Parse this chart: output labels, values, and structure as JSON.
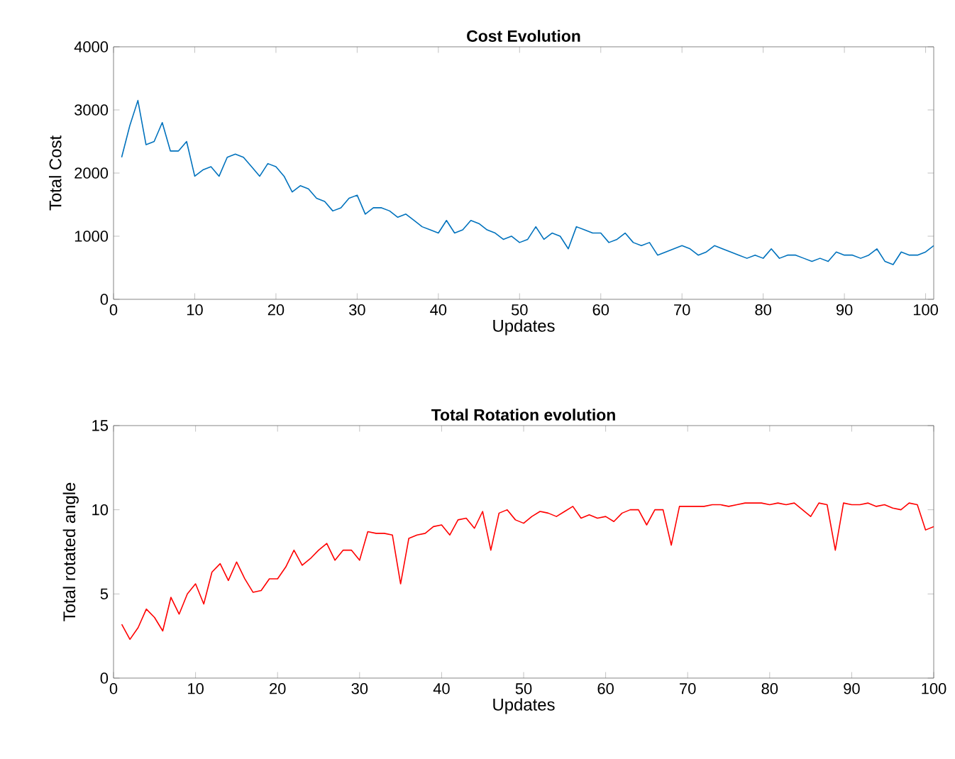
{
  "chart_data": [
    {
      "type": "line",
      "title": "Cost Evolution",
      "xlabel": "Updates",
      "ylabel": "Total Cost",
      "x": [
        1,
        2,
        3,
        4,
        5,
        6,
        7,
        8,
        9,
        10,
        11,
        12,
        13,
        14,
        15,
        16,
        17,
        18,
        19,
        20,
        21,
        22,
        23,
        24,
        25,
        26,
        27,
        28,
        29,
        30,
        31,
        32,
        33,
        34,
        35,
        36,
        37,
        38,
        39,
        40,
        41,
        42,
        43,
        44,
        45,
        46,
        47,
        48,
        49,
        50,
        51,
        52,
        53,
        54,
        55,
        56,
        57,
        58,
        59,
        60,
        61,
        62,
        63,
        64,
        65,
        66,
        67,
        68,
        69,
        70,
        71,
        72,
        73,
        74,
        75,
        76,
        77,
        78,
        79,
        80,
        81,
        82,
        83,
        84,
        85,
        86,
        87,
        88,
        89,
        90,
        91,
        92,
        93,
        94,
        95,
        96,
        97,
        98,
        99,
        100,
        101
      ],
      "series": [
        {
          "color": "#0072bd",
          "values": [
            2250,
            2750,
            3150,
            2450,
            2500,
            2800,
            2350,
            2350,
            2500,
            1950,
            2050,
            2100,
            1950,
            2250,
            2300,
            2250,
            2100,
            1950,
            2150,
            2100,
            1950,
            1700,
            1800,
            1750,
            1600,
            1550,
            1400,
            1450,
            1600,
            1650,
            1350,
            1450,
            1450,
            1400,
            1300,
            1350,
            1250,
            1150,
            1100,
            1050,
            1250,
            1050,
            1100,
            1250,
            1200,
            1100,
            1050,
            950,
            1000,
            900,
            950,
            1150,
            950,
            1050,
            1000,
            800,
            1150,
            1100,
            1050,
            1050,
            900,
            950,
            1050,
            900,
            850,
            900,
            700,
            750,
            800,
            850,
            800,
            700,
            750,
            850,
            800,
            750,
            700,
            650,
            700,
            650,
            800,
            650,
            700,
            700,
            650,
            600,
            650,
            600,
            750,
            700,
            700,
            650,
            700,
            800,
            600,
            550,
            750,
            700,
            700,
            750,
            850
          ]
        }
      ],
      "xlim": [
        0,
        101
      ],
      "ylim": [
        0,
        4000
      ],
      "xticks": [
        0,
        10,
        20,
        30,
        40,
        50,
        60,
        70,
        80,
        90,
        100
      ],
      "yticks": [
        0,
        1000,
        2000,
        3000,
        4000
      ],
      "grid": false
    },
    {
      "type": "line",
      "title": "Total Rotation evolution",
      "xlabel": "Updates",
      "ylabel": "Total rotated angle",
      "x": [
        1,
        2,
        3,
        4,
        5,
        6,
        7,
        8,
        9,
        10,
        11,
        12,
        13,
        14,
        15,
        16,
        17,
        18,
        19,
        20,
        21,
        22,
        23,
        24,
        25,
        26,
        27,
        28,
        29,
        30,
        31,
        32,
        33,
        34,
        35,
        36,
        37,
        38,
        39,
        40,
        41,
        42,
        43,
        44,
        45,
        46,
        47,
        48,
        49,
        50,
        51,
        52,
        53,
        54,
        55,
        56,
        57,
        58,
        59,
        60,
        61,
        62,
        63,
        64,
        65,
        66,
        67,
        68,
        69,
        70,
        71,
        72,
        73,
        74,
        75,
        76,
        77,
        78,
        79,
        80,
        81,
        82,
        83,
        84,
        85,
        86,
        87,
        88,
        89,
        90,
        91,
        92,
        93,
        94,
        95,
        96,
        97,
        98,
        99,
        100
      ],
      "series": [
        {
          "color": "#ff0000",
          "values": [
            3.2,
            2.3,
            3.0,
            4.1,
            3.6,
            2.8,
            4.8,
            3.8,
            5.0,
            5.6,
            4.4,
            6.3,
            6.8,
            5.8,
            6.9,
            5.9,
            5.1,
            5.2,
            5.9,
            5.9,
            6.6,
            7.6,
            6.7,
            7.1,
            7.6,
            8.0,
            7.0,
            7.6,
            7.6,
            7.0,
            8.7,
            8.6,
            8.6,
            8.5,
            5.6,
            8.3,
            8.5,
            8.6,
            9.0,
            9.1,
            8.5,
            9.4,
            9.5,
            8.9,
            9.9,
            7.6,
            9.8,
            10.0,
            9.4,
            9.2,
            9.6,
            9.9,
            9.8,
            9.6,
            9.9,
            10.2,
            9.5,
            9.7,
            9.5,
            9.6,
            9.3,
            9.8,
            10.0,
            10.0,
            9.1,
            10.0,
            10.0,
            7.9,
            10.2,
            10.2,
            10.2,
            10.2,
            10.3,
            10.3,
            10.2,
            10.3,
            10.4,
            10.4,
            10.4,
            10.3,
            10.4,
            10.3,
            10.4,
            10.0,
            9.6,
            10.4,
            10.3,
            7.6,
            10.4,
            10.3,
            10.3,
            10.4,
            10.2,
            10.3,
            10.1,
            10.0,
            10.4,
            10.3,
            8.8,
            9.0
          ]
        }
      ],
      "xlim": [
        0,
        100
      ],
      "ylim": [
        0,
        15
      ],
      "xticks": [
        0,
        10,
        20,
        30,
        40,
        50,
        60,
        70,
        80,
        90,
        100
      ],
      "yticks": [
        0,
        5,
        10,
        15
      ],
      "grid": false
    }
  ]
}
